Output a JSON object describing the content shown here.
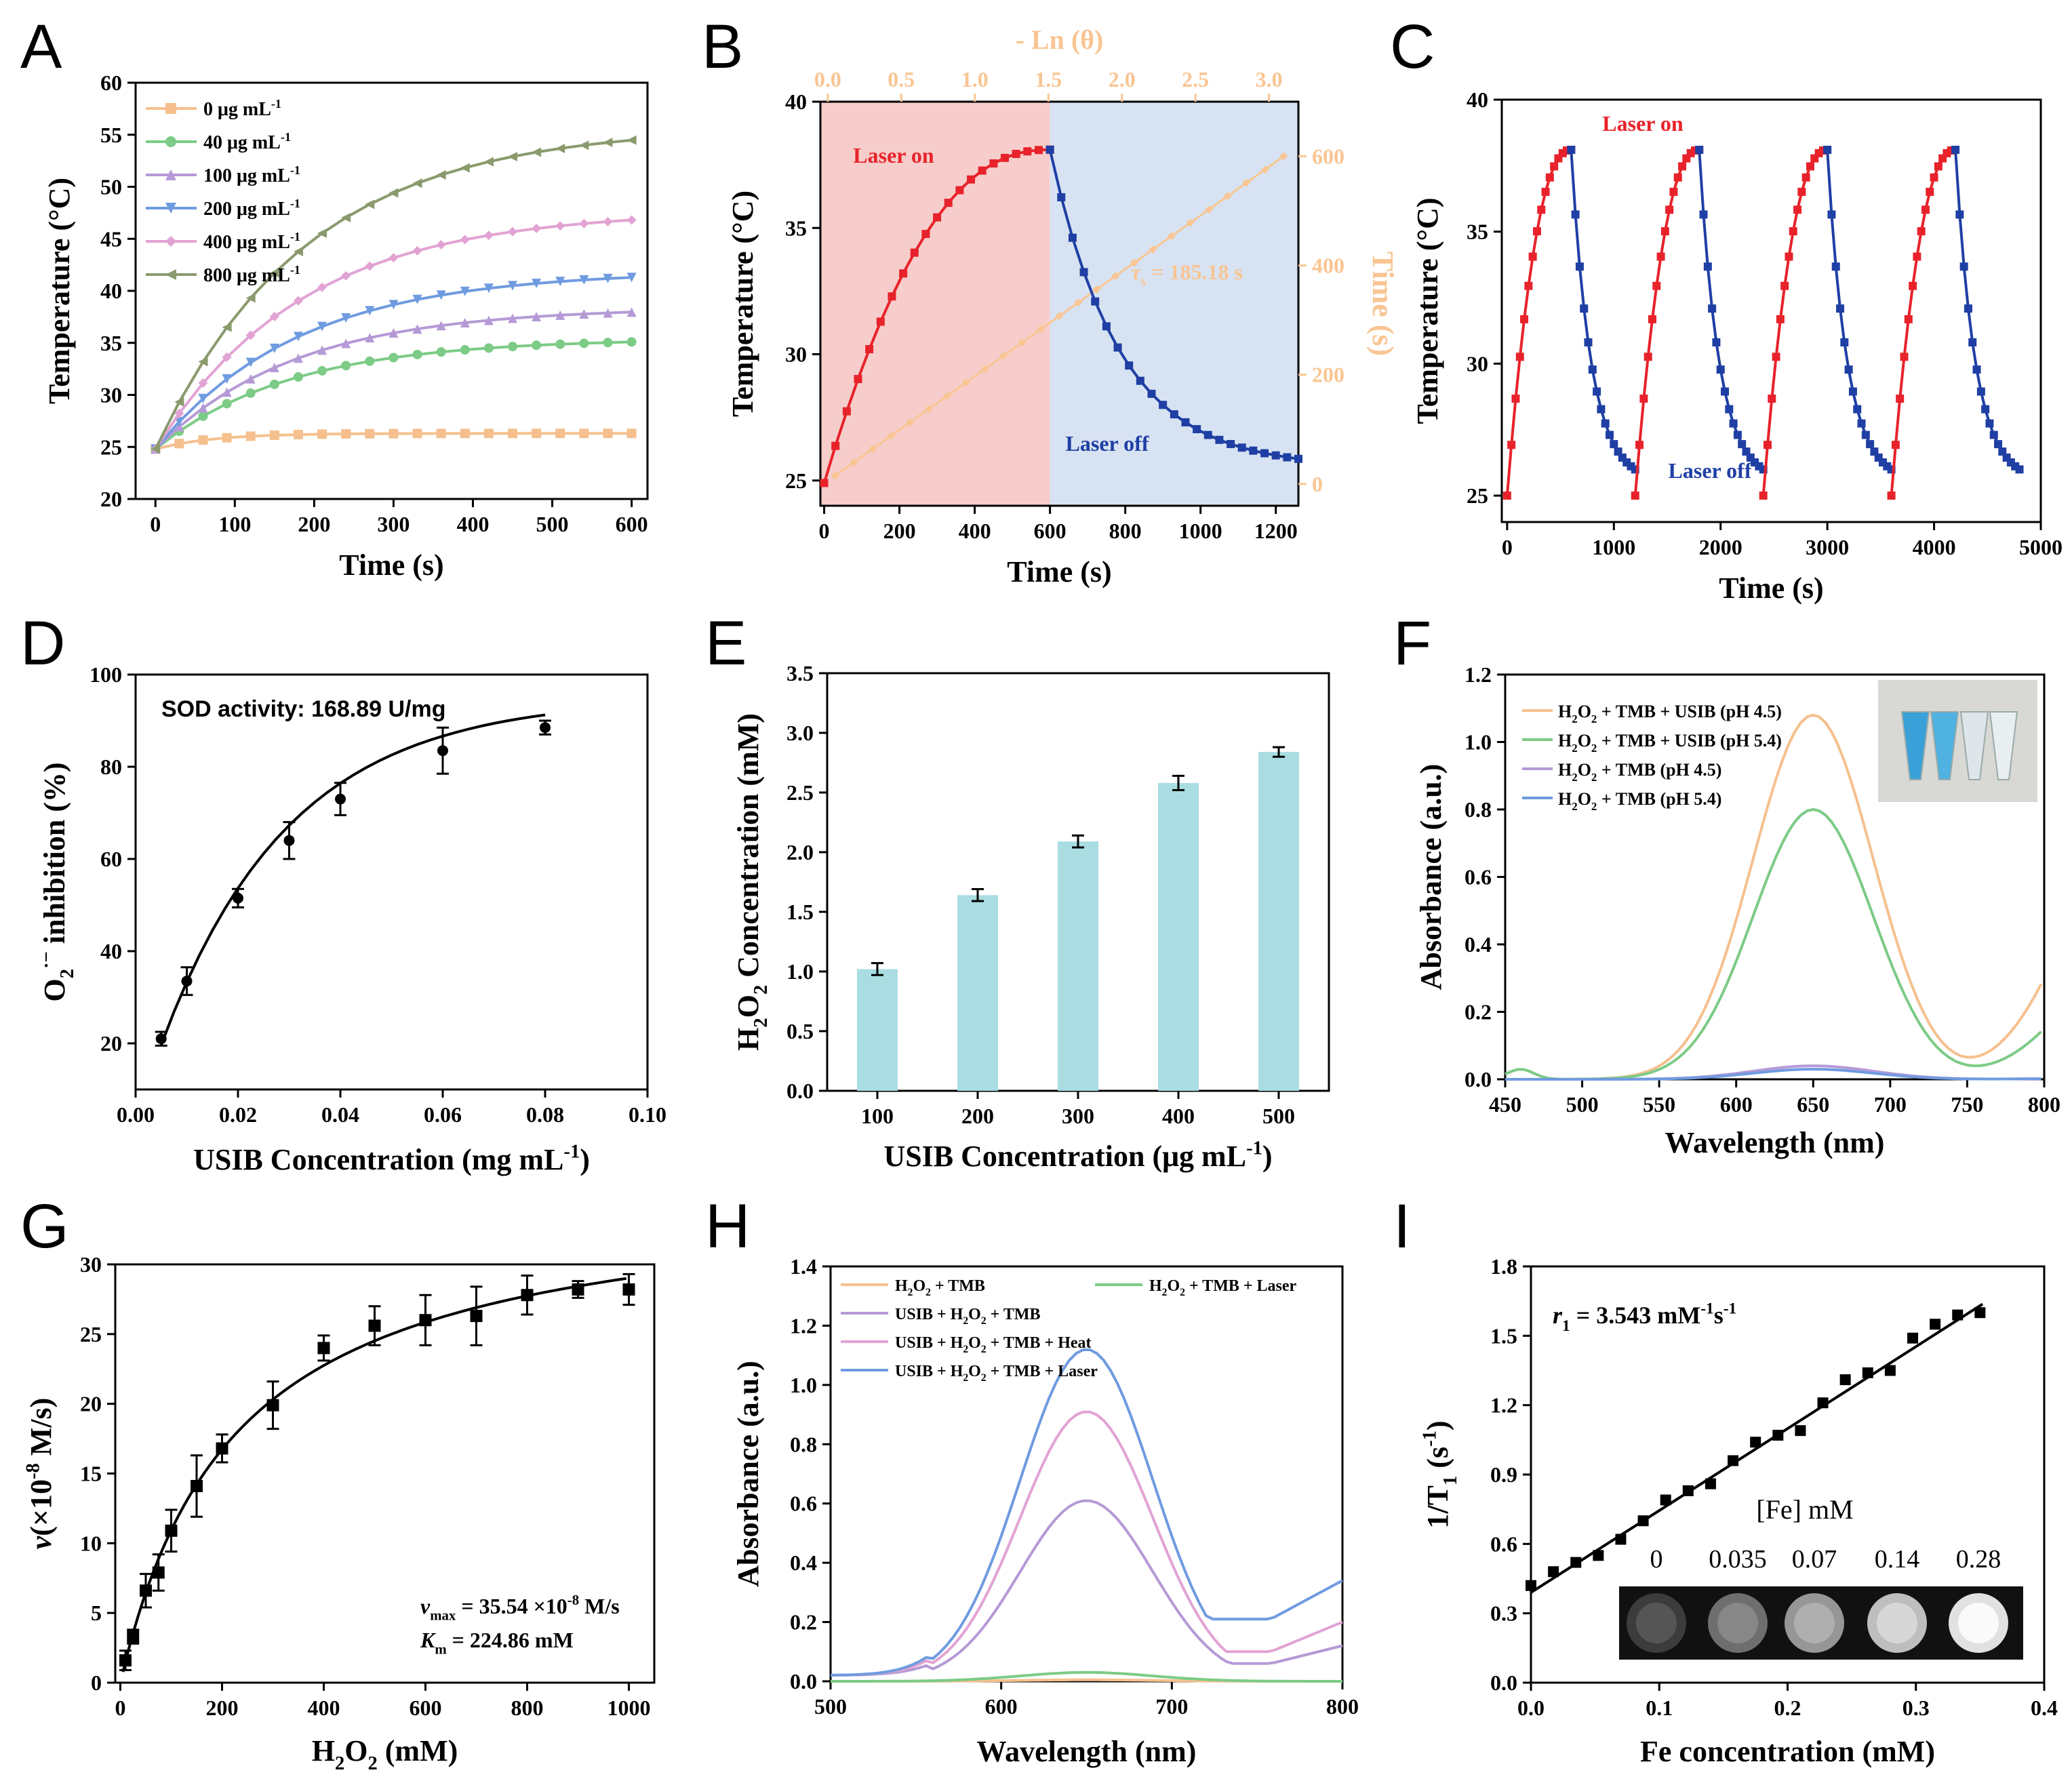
{
  "colors": {
    "orange": "#f5c08e",
    "green": "#7ccb86",
    "purple": "#b59ad6",
    "blue": "#6f9be0",
    "pink": "#e2a3d4",
    "olive": "#8a9a6d",
    "red": "#e8222a",
    "navy": "#1f3fa4",
    "bar": "#a9dde2",
    "lightorange": "#f9c593",
    "lightpink": "#f6cdca",
    "lightblue": "#d7e3f2"
  },
  "panels": [
    {
      "id": "A",
      "letter": "A",
      "x": [
        0,
        600
      ],
      "y": [
        20,
        60
      ],
      "xticks": [
        0,
        100,
        200,
        300,
        400,
        500,
        600
      ],
      "yticks": [
        20,
        25,
        30,
        35,
        40,
        45,
        50,
        55,
        60
      ],
      "xlabel": "Time (s)",
      "ylabel": "Temperature (°C)"
    },
    {
      "id": "B",
      "letter": "B",
      "x": [
        -10,
        1260
      ],
      "y": [
        24,
        40
      ],
      "xticks": [
        0,
        200,
        400,
        600,
        800,
        1000,
        1200
      ],
      "yticks": [
        25,
        30,
        35,
        40
      ],
      "xlabel": "Time (s)",
      "ylabel": "Temperature (°C)",
      "top_label": "- Ln (θ)",
      "top_ticks": [
        0.0,
        0.5,
        1.0,
        1.5,
        2.0,
        2.5,
        3.0
      ],
      "top_range": [
        -0.05,
        3.2
      ],
      "right_label": "Time (s)",
      "right_ticks": [
        0,
        200,
        400,
        600
      ],
      "right_range": [
        -40,
        700
      ]
    },
    {
      "id": "C",
      "letter": "C",
      "x": [
        -50,
        5000
      ],
      "y": [
        24,
        40
      ],
      "xticks": [
        0,
        1000,
        2000,
        3000,
        4000,
        5000
      ],
      "yticks": [
        25,
        30,
        35,
        40
      ],
      "xlabel": "Time (s)",
      "ylabel": "Temperature (°C)"
    },
    {
      "id": "D",
      "letter": "D",
      "x": [
        0,
        0.1
      ],
      "y": [
        10,
        100
      ],
      "xticks": [
        0.0,
        0.02,
        0.04,
        0.06,
        0.08,
        0.1
      ],
      "yticks": [
        20,
        40,
        60,
        80,
        100
      ],
      "xlabel": "USIB Concentration (mg mL",
      "xlabel_sup": "-1",
      "xlabel_end": ")",
      "ylabel": "O2·− inhibition (%)"
    },
    {
      "id": "E",
      "letter": "E",
      "y": [
        0,
        3.5
      ],
      "yticks": [
        0.0,
        0.5,
        1.0,
        1.5,
        2.0,
        2.5,
        3.0,
        3.5
      ],
      "xlabel": "USIB Concentration (μg mL",
      "xlabel_sup": "-1",
      "xlabel_end": ")",
      "ylabel": "H2O2 Concentration (mM)"
    },
    {
      "id": "F",
      "letter": "F",
      "x": [
        450,
        800
      ],
      "y": [
        0,
        1.2
      ],
      "xticks": [
        450,
        500,
        550,
        600,
        650,
        700,
        750,
        800
      ],
      "yticks": [
        0.0,
        0.2,
        0.4,
        0.6,
        0.8,
        1.0,
        1.2
      ],
      "xlabel": "Wavelength (nm)",
      "ylabel": "Absorbance (a.u.)"
    },
    {
      "id": "G",
      "letter": "G",
      "x": [
        -10,
        1050
      ],
      "y": [
        0,
        30
      ],
      "xticks": [
        0,
        200,
        400,
        600,
        800,
        1000
      ],
      "yticks": [
        0,
        5,
        10,
        15,
        20,
        25,
        30
      ],
      "xlabel": "H2O2 (mM)",
      "ylabel": "ν(×10-8 M/s)"
    },
    {
      "id": "H",
      "letter": "H",
      "x": [
        500,
        800
      ],
      "y": [
        0,
        1.4
      ],
      "xticks": [
        500,
        600,
        700,
        800
      ],
      "yticks": [
        0.0,
        0.2,
        0.4,
        0.6,
        0.8,
        1.0,
        1.2,
        1.4
      ],
      "xlabel": "Wavelength (nm)",
      "ylabel": "Absorbance (a.u.)"
    },
    {
      "id": "I",
      "letter": "I",
      "x": [
        0,
        0.4
      ],
      "y": [
        0,
        1.8
      ],
      "xticks": [
        0.0,
        0.1,
        0.2,
        0.3,
        0.4
      ],
      "yticks": [
        0.0,
        0.3,
        0.6,
        0.9,
        1.2,
        1.5,
        1.8
      ],
      "xlabel": "Fe concentration (mM)",
      "ylabel": "1/T1 (s-1)"
    }
  ],
  "chart_data": [
    {
      "panel": "A",
      "type": "line",
      "title": "",
      "xlabel": "Time (s)",
      "ylabel": "Temperature (°C)",
      "x": [
        0,
        30,
        60,
        90,
        120,
        150,
        180,
        210,
        240,
        270,
        300,
        330,
        360,
        390,
        420,
        450,
        480,
        510,
        540,
        570,
        600
      ],
      "legend": [
        "0 μg mL-1",
        "40 μg mL-1",
        "100 μg mL-1",
        "200 μg mL-1",
        "400 μg mL-1",
        "800 μg mL-1"
      ],
      "series": [
        {
          "name": "0 μg mL-1",
          "plateau": 26.3,
          "tau": 70
        },
        {
          "name": "40 μg mL-1",
          "plateau": 35.4,
          "tau": 170
        },
        {
          "name": "100 μg mL-1",
          "plateau": 38.4,
          "tau": 175
        },
        {
          "name": "200 μg mL-1",
          "plateau": 41.9,
          "tau": 180
        },
        {
          "name": "400 μg mL-1",
          "plateau": 47.7,
          "tau": 185
        },
        {
          "name": "800 μg mL-1",
          "plateau": 55.8,
          "tau": 190
        }
      ],
      "start": 24.8,
      "ylim": [
        20,
        60
      ]
    },
    {
      "panel": "B",
      "type": "line",
      "xlabel": "Time (s)",
      "ylabel": "Temperature (°C)",
      "heating": {
        "t0": 0,
        "t1": 600,
        "start": 24.9,
        "peak": 38.1
      },
      "cooling": {
        "t0": 600,
        "t1": 1260,
        "start": 38.1,
        "end": 25.5,
        "tau": 185.18
      },
      "linear_fit": {
        "x0": 0.05,
        "y0": 15,
        "x1": 3.1,
        "y1": 600
      },
      "annotations": [
        "Laser on",
        "Laser off",
        "τs = 185.18 s"
      ]
    },
    {
      "panel": "C",
      "type": "line",
      "xlabel": "Time (s)",
      "ylabel": "Temperature (°C)",
      "cycles": 4,
      "cycle_period": 1200,
      "heat_time": 600,
      "min": 25.0,
      "max": 38.1,
      "annotations": [
        "Laser on",
        "Laser off"
      ]
    },
    {
      "panel": "D",
      "type": "scatter",
      "xlabel": "USIB Concentration (mg mL-1)",
      "ylabel": "O2·− inhibition (%)",
      "x": [
        0.005,
        0.01,
        0.02,
        0.03,
        0.04,
        0.06,
        0.08
      ],
      "y": [
        21,
        33.5,
        51.5,
        64,
        73,
        83.5,
        88.5
      ],
      "err": [
        1.5,
        3,
        2,
        4,
        3.5,
        5,
        1.5
      ],
      "annotation": "SOD activity: 168.89 U/mg"
    },
    {
      "panel": "E",
      "type": "bar",
      "xlabel": "USIB Concentration (μg mL-1)",
      "ylabel": "H2O2 Concentration (mM)",
      "categories": [
        "100",
        "200",
        "300",
        "400",
        "500"
      ],
      "values": [
        1.02,
        1.64,
        2.09,
        2.58,
        2.84
      ],
      "err": [
        0.05,
        0.05,
        0.05,
        0.06,
        0.04
      ]
    },
    {
      "panel": "F",
      "type": "line",
      "xlabel": "Wavelength (nm)",
      "ylabel": "Absorbance (a.u.)",
      "series": [
        {
          "name": "H2O2+TMB+USIB (pH 4.5)",
          "peak": 1.08
        },
        {
          "name": "H2O2+TMB+USIB (pH 5.4)",
          "peak": 0.8
        },
        {
          "name": "H2O2+TMB (pH 4.5)",
          "peak": 0.04
        },
        {
          "name": "H2O2+TMB (pH 5.4)",
          "peak": 0.03
        }
      ]
    },
    {
      "panel": "G",
      "type": "scatter",
      "xlabel": "H2O2 (mM)",
      "ylabel": "ν (×10-8 M/s)",
      "x": [
        10,
        25,
        50,
        75,
        100,
        150,
        200,
        300,
        400,
        500,
        600,
        700,
        800,
        900,
        1000
      ],
      "y": [
        1.6,
        3.3,
        6.6,
        7.9,
        10.9,
        14.1,
        16.8,
        19.9,
        24.0,
        25.6,
        26.0,
        26.3,
        27.8,
        28.2,
        28.2
      ],
      "err": [
        0.7,
        0.5,
        1.2,
        1.3,
        1.5,
        2.2,
        1.0,
        1.7,
        0.9,
        1.4,
        1.8,
        2.1,
        1.4,
        0.6,
        1.1
      ],
      "fit": {
        "vmax": 35.54,
        "km": 224.86
      },
      "annotations": [
        "νmax = 35.54 ×10-8 M/s",
        "Km = 224.86 mM"
      ]
    },
    {
      "panel": "H",
      "type": "line",
      "xlabel": "Wavelength (nm)",
      "ylabel": "Absorbance (a.u.)",
      "series": [
        {
          "name": "H2O2+TMB",
          "peak": 0.005
        },
        {
          "name": "H2O2+TMB+Laser",
          "peak": 0.03
        },
        {
          "name": "USIB+H2O2+TMB",
          "peak": 0.61
        },
        {
          "name": "USIB+H2O2+TMB+Heat",
          "peak": 0.91
        },
        {
          "name": "USIB+H2O2+TMB+Laser",
          "peak": 1.12
        }
      ]
    },
    {
      "panel": "I",
      "type": "scatter",
      "xlabel": "Fe concentration (mM)",
      "ylabel": "1/T1 (s-1)",
      "x": [
        0,
        0.0175,
        0.035,
        0.0525,
        0.07,
        0.0875,
        0.105,
        0.1225,
        0.14,
        0.1575,
        0.175,
        0.1925,
        0.21,
        0.2275,
        0.245,
        0.2625,
        0.28,
        0.2975,
        0.315,
        0.3325,
        0.35
      ],
      "y": [
        0.42,
        0.48,
        0.52,
        0.55,
        0.62,
        0.7,
        0.79,
        0.83,
        0.86,
        0.96,
        1.04,
        1.07,
        1.09,
        1.21,
        1.31,
        1.34,
        1.35,
        1.49,
        1.55,
        1.59,
        1.6
      ],
      "fit": {
        "slope": 3.543,
        "intercept": 0.39
      },
      "annotation": "r1 = 3.543 mM-1s-1",
      "inset_title": "[Fe] mM",
      "inset_labels": [
        "0",
        "0.035",
        "0.07",
        "0.14",
        "0.28"
      ]
    }
  ]
}
